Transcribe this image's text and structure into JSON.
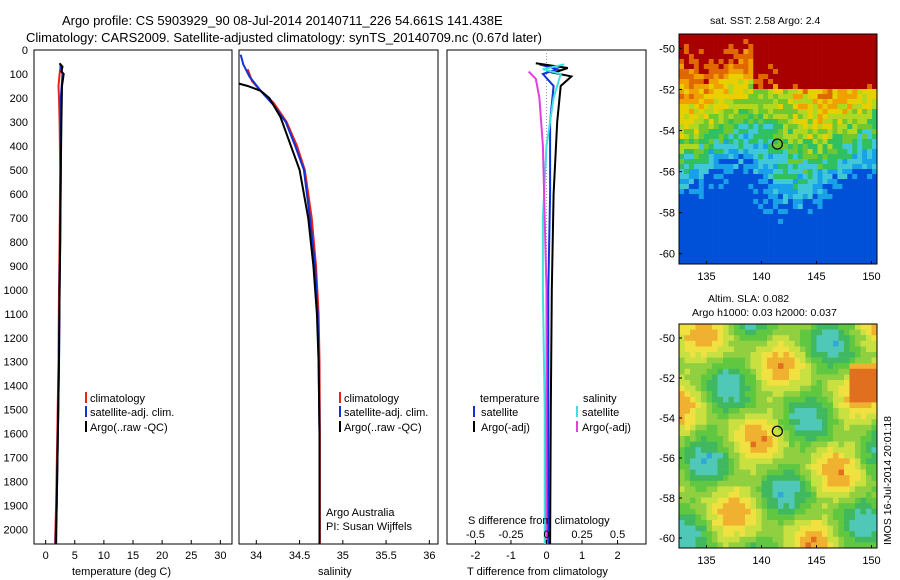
{
  "header": {
    "line1": "Argo profile: CS 5903929_90 08-Jul-2014 20140711_226 54.661S 141.438E",
    "line2": "Climatology: CARS2009. Satellite-adjusted climatology: synTS_20140709.nc (0.67d later)"
  },
  "colors": {
    "climatology": "#e8221c",
    "satellite": "#1030d8",
    "argo": "#000000",
    "sal_sat": "#40e0e0",
    "sal_argo": "#e040e0"
  },
  "depth_ticks": [
    "0",
    "100",
    "200",
    "300",
    "400",
    "500",
    "600",
    "700",
    "800",
    "900",
    "1000",
    "1100",
    "1200",
    "1300",
    "1400",
    "1500",
    "1600",
    "1700",
    "1800",
    "1900",
    "2000"
  ],
  "legend": {
    "climatology": "climatology",
    "satellite": "satellite-adj. clim.",
    "argo": "Argo(..raw -QC)"
  },
  "chart_data": [
    {
      "type": "line",
      "xlabel": "temperature (deg C)",
      "xticks": [
        "0",
        "5",
        "10",
        "15",
        "20",
        "25",
        "30"
      ],
      "xlim": [
        -2,
        32
      ],
      "ylim": [
        0,
        2060
      ],
      "series": [
        {
          "name": "climatology",
          "values": [
            [
              2.6,
              60
            ],
            [
              2.4,
              100
            ],
            [
              2.2,
              150
            ],
            [
              2.3,
              200
            ],
            [
              2.4,
              300
            ],
            [
              2.5,
              500
            ],
            [
              2.4,
              800
            ],
            [
              2.3,
              1000
            ],
            [
              2.2,
              1300
            ],
            [
              2.0,
              1600
            ],
            [
              1.8,
              1900
            ],
            [
              1.6,
              2060
            ]
          ]
        },
        {
          "name": "satellite-adj. clim.",
          "values": [
            [
              2.5,
              60
            ],
            [
              2.9,
              100
            ],
            [
              2.6,
              200
            ],
            [
              2.6,
              300
            ],
            [
              2.6,
              500
            ],
            [
              2.5,
              800
            ],
            [
              2.4,
              1000
            ],
            [
              2.3,
              1300
            ],
            [
              2.1,
              1600
            ],
            [
              1.9,
              1900
            ],
            [
              1.7,
              2060
            ]
          ]
        },
        {
          "name": "Argo(..raw -QC)",
          "values": [
            [
              2.4,
              55
            ],
            [
              2.9,
              70
            ],
            [
              2.7,
              90
            ],
            [
              3.1,
              100
            ],
            [
              2.8,
              150
            ],
            [
              2.7,
              300
            ],
            [
              2.6,
              500
            ],
            [
              2.5,
              800
            ],
            [
              2.4,
              1000
            ],
            [
              2.3,
              1300
            ],
            [
              2.1,
              1600
            ],
            [
              1.9,
              1900
            ],
            [
              1.8,
              2060
            ]
          ]
        }
      ]
    },
    {
      "type": "line",
      "xlabel": "salinity",
      "xticks": [
        "34",
        "34.5",
        "35",
        "35.5",
        "36"
      ],
      "xlim": [
        33.8,
        36.1
      ],
      "ylim": [
        0,
        2060
      ],
      "annotation": [
        "Argo Australia",
        "PI: Susan Wijffels"
      ],
      "series": [
        {
          "name": "climatology",
          "values": [
            [
              33.9,
              80
            ],
            [
              33.95,
              130
            ],
            [
              34.05,
              170
            ],
            [
              34.2,
              220
            ],
            [
              34.35,
              300
            ],
            [
              34.47,
              400
            ],
            [
              34.56,
              500
            ],
            [
              34.64,
              700
            ],
            [
              34.69,
              900
            ],
            [
              34.72,
              1100
            ],
            [
              34.73,
              1300
            ],
            [
              34.735,
              1600
            ],
            [
              34.735,
              2060
            ]
          ]
        },
        {
          "name": "satellite-adj. clim.",
          "values": [
            [
              33.82,
              20
            ],
            [
              33.85,
              60
            ],
            [
              33.92,
              110
            ],
            [
              34.05,
              170
            ],
            [
              34.2,
              230
            ],
            [
              34.34,
              300
            ],
            [
              34.45,
              400
            ],
            [
              34.55,
              500
            ],
            [
              34.62,
              700
            ],
            [
              34.68,
              900
            ],
            [
              34.71,
              1100
            ],
            [
              34.72,
              1300
            ],
            [
              34.73,
              1600
            ],
            [
              34.73,
              2060
            ]
          ]
        },
        {
          "name": "Argo(..raw -QC)",
          "values": [
            [
              33.8,
              140
            ],
            [
              33.9,
              150
            ],
            [
              34.05,
              170
            ],
            [
              34.15,
              200
            ],
            [
              34.28,
              280
            ],
            [
              34.4,
              400
            ],
            [
              34.5,
              500
            ],
            [
              34.6,
              700
            ],
            [
              34.66,
              900
            ],
            [
              34.7,
              1100
            ],
            [
              34.72,
              1300
            ],
            [
              34.73,
              1600
            ],
            [
              34.73,
              2060
            ]
          ]
        }
      ]
    },
    {
      "type": "line",
      "xlabel_bottom": "T difference from climatology",
      "xlabel_top": "S difference from climatology",
      "xticks_T": [
        "-2",
        "-1",
        "0",
        "1",
        "2"
      ],
      "xticks_S": [
        "-0.5",
        "-0.25",
        "0",
        "0.25",
        "0.5"
      ],
      "xlim": [
        -2.8,
        2.8
      ],
      "ylim": [
        0,
        2060
      ],
      "legend": {
        "temp_head": "temperature",
        "sal_head": "salinity",
        "satellite": "satellite",
        "argo": "Argo(-adj)"
      },
      "series": [
        {
          "name": "satellite",
          "values": [
            [
              -0.2,
              60
            ],
            [
              0.3,
              80
            ],
            [
              -0.1,
              100
            ],
            [
              0.2,
              150
            ],
            [
              0.1,
              300
            ],
            [
              0.1,
              600
            ],
            [
              0.05,
              1000
            ],
            [
              0.05,
              1500
            ],
            [
              0.05,
              2060
            ]
          ]
        },
        {
          "name": "Argo(-adj)",
          "values": [
            [
              -0.3,
              55
            ],
            [
              0.6,
              75
            ],
            [
              0.2,
              95
            ],
            [
              0.7,
              110
            ],
            [
              0.4,
              150
            ],
            [
              0.3,
              300
            ],
            [
              0.2,
              600
            ],
            [
              0.15,
              1000
            ],
            [
              0.12,
              1500
            ],
            [
              0.1,
              2060
            ]
          ]
        },
        {
          "name": "satellite",
          "values": [
            [
              0.5,
              60
            ],
            [
              -0.1,
              80
            ],
            [
              0.4,
              100
            ],
            [
              0.2,
              200
            ],
            [
              0.0,
              400
            ],
            [
              -0.1,
              700
            ],
            [
              -0.1,
              1000
            ],
            [
              -0.05,
              1500
            ],
            [
              -0.05,
              2060
            ]
          ]
        },
        {
          "name": "Argo(-adj)",
          "values": [
            [
              -0.5,
              90
            ],
            [
              -0.3,
              120
            ],
            [
              -0.2,
              200
            ],
            [
              -0.1,
              400
            ],
            [
              -0.05,
              700
            ],
            [
              0.0,
              1000
            ],
            [
              0.0,
              1500
            ],
            [
              0.0,
              2060
            ]
          ]
        }
      ]
    },
    {
      "type": "heatmap",
      "title": "sat. SST: 2.58  Argo: 2.4",
      "xticks": [
        "135",
        "140",
        "145",
        "150"
      ],
      "yticks": [
        "-50",
        "-52",
        "-54",
        "-56",
        "-58",
        "-60"
      ],
      "xlim": [
        132.5,
        150.5
      ],
      "ylim": [
        -60.5,
        -49.3
      ],
      "marker": [
        141.44,
        -54.66
      ]
    },
    {
      "type": "heatmap",
      "title": "Altim. SLA: 0.082",
      "subtitle": "Argo h1000: 0.03 h2000: 0.037",
      "xticks": [
        "135",
        "140",
        "145",
        "150"
      ],
      "yticks": [
        "-50",
        "-52",
        "-54",
        "-56",
        "-58",
        "-60"
      ],
      "xlim": [
        132.5,
        150.5
      ],
      "ylim": [
        -60.5,
        -49.3
      ],
      "marker": [
        141.44,
        -54.66
      ],
      "stamp": "IMOS 16-Jul-2014 20:01:18"
    }
  ]
}
